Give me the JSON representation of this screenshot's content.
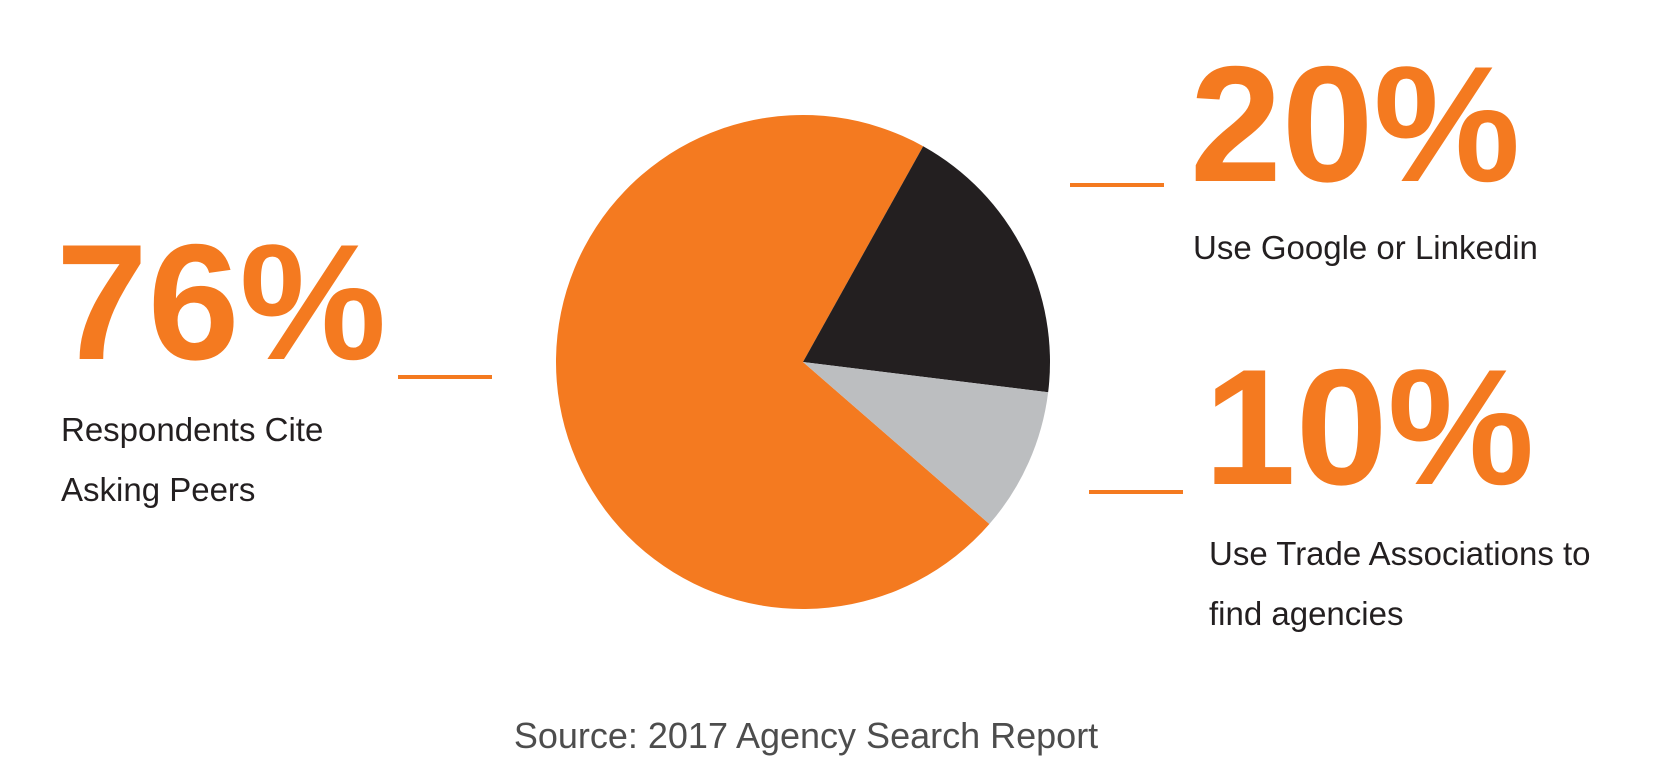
{
  "chart_data": {
    "type": "pie",
    "categories": [
      "Respondents Cite Asking Peers",
      "Use Google or Linkedin",
      "Use Trade Associations to find agencies"
    ],
    "values": [
      76,
      20,
      10
    ],
    "value_labels": [
      "76%",
      "20%",
      "10%"
    ],
    "colors": [
      "#f47a20",
      "#231f20",
      "#bcbec0"
    ],
    "source": "Source: 2017 Agency Search Report"
  }
}
